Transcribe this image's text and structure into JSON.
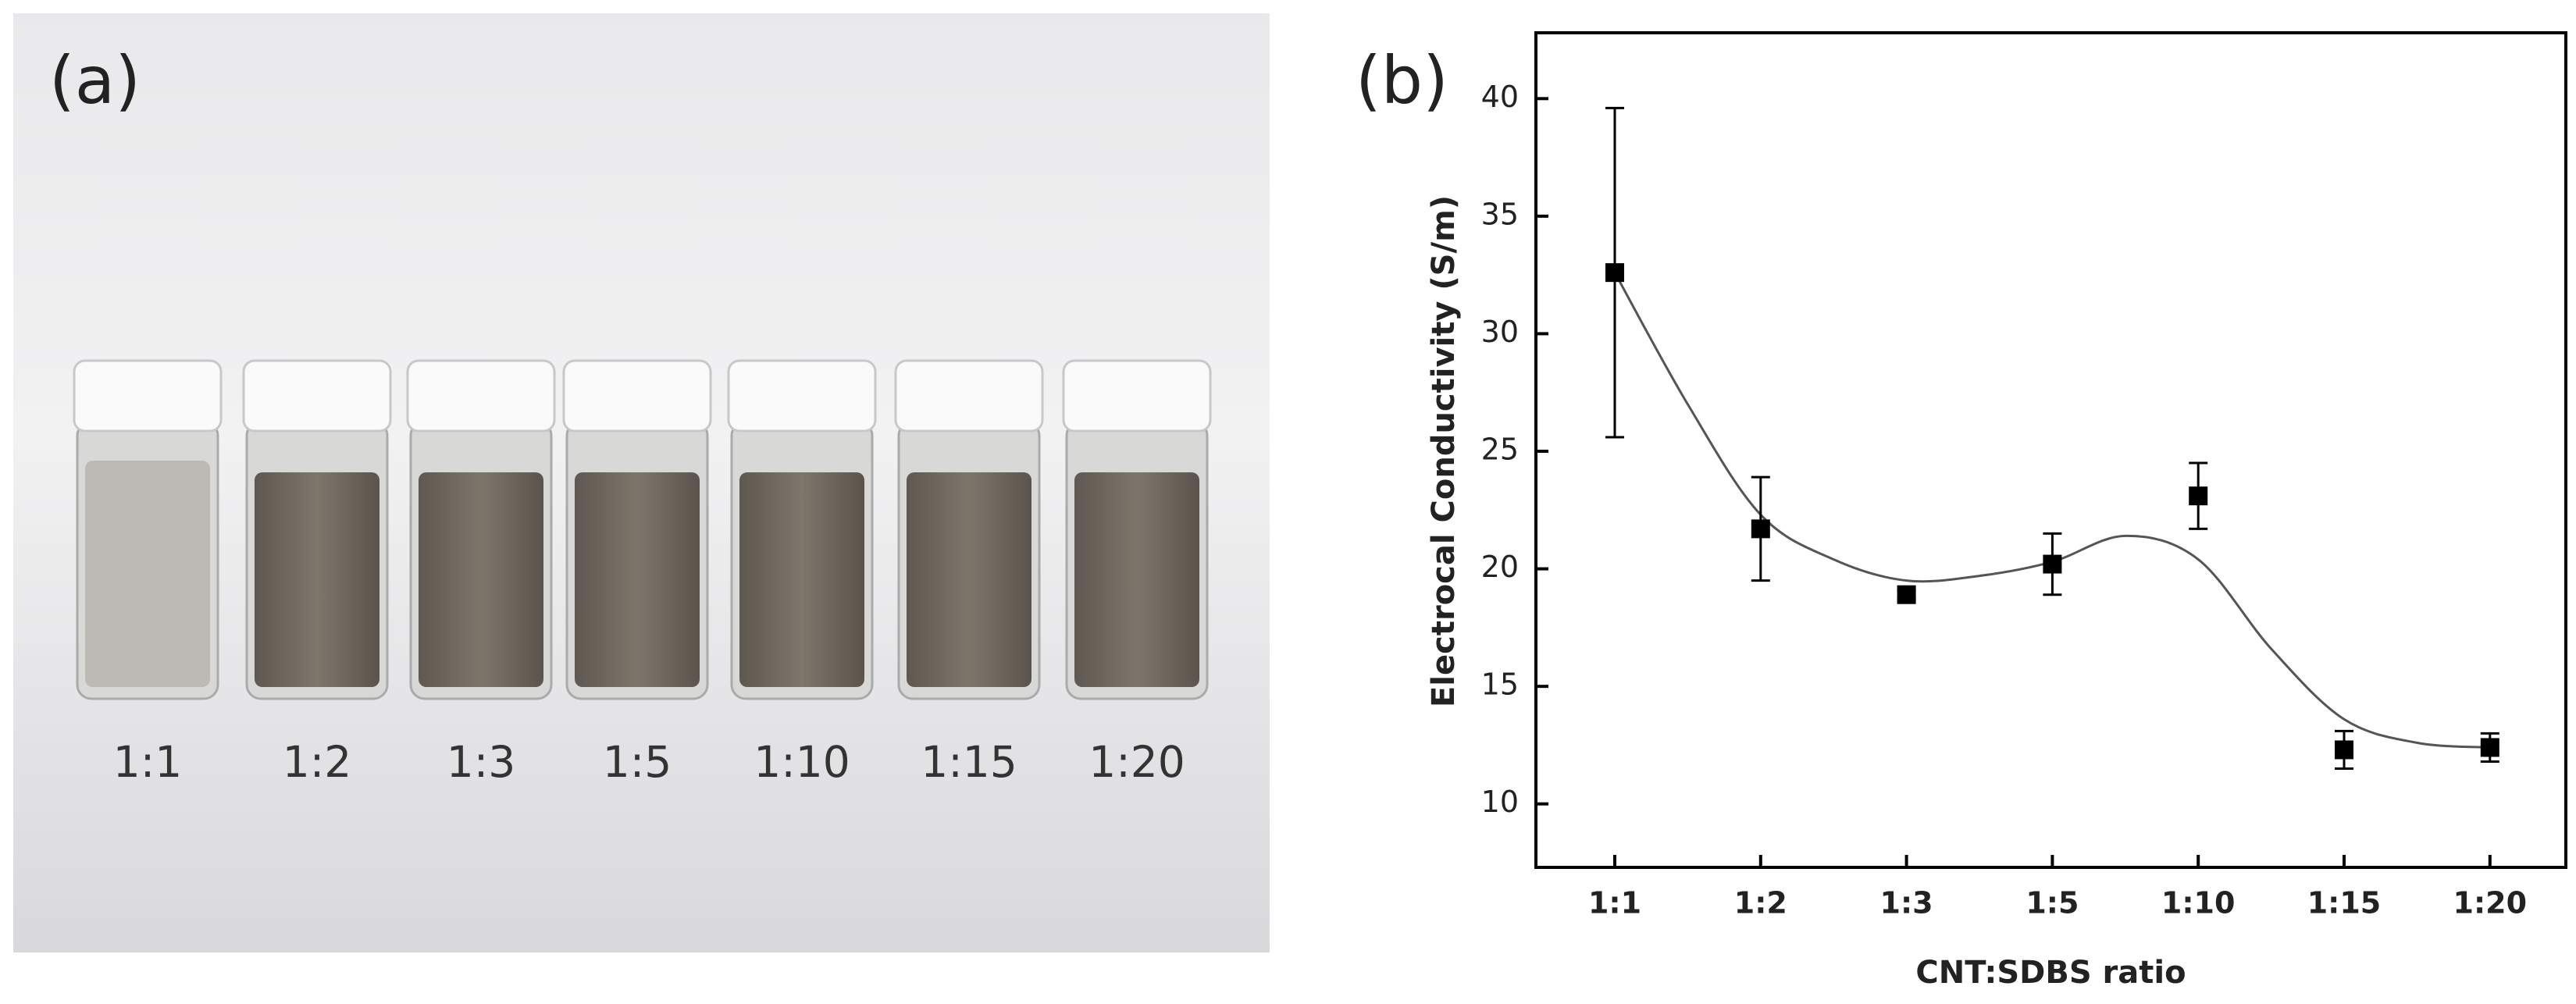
{
  "photo": {
    "label": "(a)",
    "vial_labels": [
      "1:1",
      "1:2",
      "1:3",
      "1:5",
      "1:10",
      "1:15",
      "1:20"
    ]
  },
  "chart_data": {
    "type": "scatter",
    "panel_label": "(b)",
    "x_label": "CNT:SDBS ratio",
    "y_label": "Electrocal Conductivity (S/m)",
    "categories": [
      "1:1",
      "1:2",
      "1:3",
      "1:5",
      "1:10",
      "1:15",
      "1:20"
    ],
    "values": [
      32.6,
      21.7,
      18.9,
      20.2,
      23.1,
      12.3,
      12.4
    ],
    "errors": [
      7.0,
      2.2,
      0.2,
      1.3,
      1.4,
      0.8,
      0.6
    ],
    "color": "#000000",
    "fit": {
      "x": [
        0,
        0.5,
        1,
        1.5,
        2,
        2.5,
        3,
        3.5,
        4,
        4.5,
        5,
        5.5,
        6
      ],
      "values": [
        32.6,
        27.0,
        22.3,
        20.4,
        19.5,
        19.7,
        20.3,
        21.4,
        20.4,
        16.6,
        13.6,
        12.6,
        12.4
      ],
      "color": "#555555"
    },
    "ylim": [
      7.3,
      42.8
    ],
    "yticks": [
      10,
      15,
      20,
      25,
      30,
      35,
      40
    ]
  }
}
